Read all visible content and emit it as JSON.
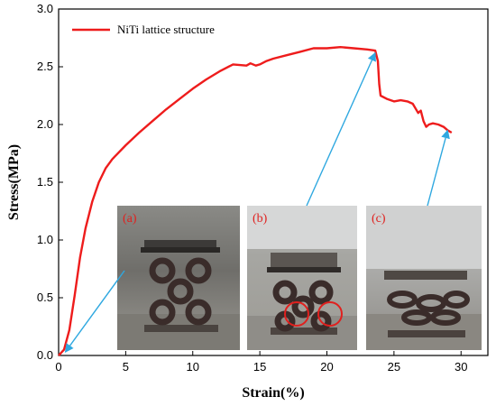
{
  "chart_data": {
    "type": "line",
    "xlabel": "Strain(%)",
    "ylabel": "Stress(MPa)",
    "xlim": [
      0,
      32
    ],
    "ylim": [
      0,
      3.0
    ],
    "xticks": [
      "0",
      "5",
      "10",
      "15",
      "20",
      "25",
      "30"
    ],
    "yticks": [
      "0.0",
      "0.5",
      "1.0",
      "1.5",
      "2.0",
      "2.5",
      "3.0"
    ],
    "grid": false,
    "legend_position": "top-left",
    "series": [
      {
        "name": "NiTi lattice structure",
        "color": "#ee1c1c",
        "x": [
          0,
          0.4,
          0.8,
          1.2,
          1.6,
          2.0,
          2.5,
          3.0,
          3.5,
          4.0,
          5.0,
          6.0,
          7.0,
          8.0,
          9.0,
          10.0,
          11.0,
          12.0,
          13.0,
          14.0,
          14.3,
          14.7,
          15.0,
          15.5,
          16.0,
          17.0,
          18.0,
          19.0,
          20.0,
          21.0,
          22.0,
          23.0,
          23.6,
          23.8,
          23.9,
          24.0,
          24.5,
          25.0,
          25.5,
          26.0,
          26.4,
          26.8,
          27.0,
          27.2,
          27.4,
          27.6,
          27.9,
          28.3,
          28.7,
          29.0,
          29.3
        ],
        "y": [
          0,
          0.05,
          0.22,
          0.52,
          0.85,
          1.1,
          1.33,
          1.5,
          1.62,
          1.7,
          1.82,
          1.93,
          2.03,
          2.13,
          2.22,
          2.31,
          2.39,
          2.46,
          2.52,
          2.51,
          2.53,
          2.51,
          2.52,
          2.55,
          2.57,
          2.6,
          2.63,
          2.66,
          2.66,
          2.67,
          2.66,
          2.65,
          2.64,
          2.55,
          2.35,
          2.25,
          2.22,
          2.2,
          2.21,
          2.2,
          2.18,
          2.1,
          2.12,
          2.03,
          1.98,
          2.0,
          2.01,
          2.0,
          1.98,
          1.95,
          1.93
        ]
      }
    ],
    "insets": [
      {
        "label": "(a)",
        "strain": 0.5,
        "stress": 0.03
      },
      {
        "label": "(b)",
        "strain": 23.6,
        "stress": 2.62
      },
      {
        "label": "(c)",
        "strain": 29.0,
        "stress": 1.95
      }
    ],
    "arrow_color": "#2fa8e0"
  }
}
